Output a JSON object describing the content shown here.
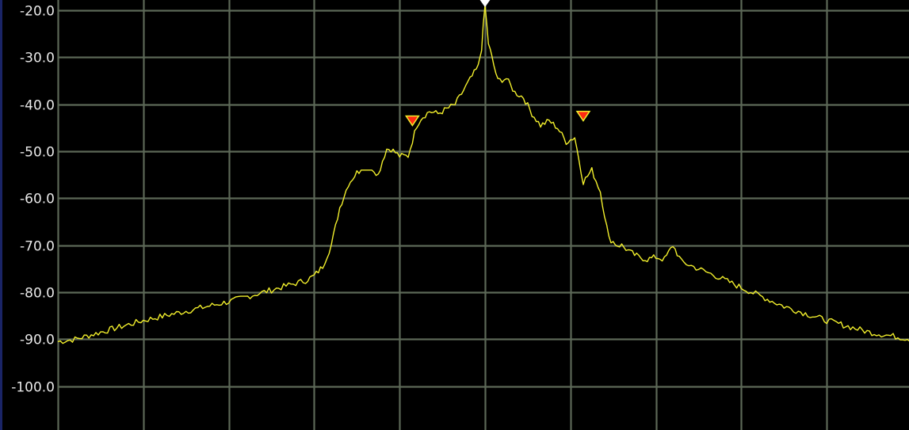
{
  "chart_data": {
    "type": "line",
    "title": "",
    "xlabel": "",
    "ylabel": "",
    "ylim": [
      -109.3,
      -17.8
    ],
    "y_ticks": [
      "-20.0",
      "-30.0",
      "-40.0",
      "-50.0",
      "-60.0",
      "-70.0",
      "-80.0",
      "-90.0",
      "-100.0"
    ],
    "y_tick_values": [
      -20,
      -30,
      -40,
      -50,
      -60,
      -70,
      -80,
      -90,
      -100
    ],
    "x_divisions": 10,
    "grid": true,
    "legend": "none",
    "series": [
      {
        "x": [
          0.0,
          0.2,
          0.5,
          0.8,
          1.0,
          1.5,
          2.0,
          2.5,
          2.9,
          3.0,
          3.1,
          3.2,
          3.3,
          3.4,
          3.5,
          3.55,
          3.6,
          3.7,
          3.75,
          3.8,
          3.85,
          3.9,
          4.0,
          4.1,
          4.2,
          4.25,
          4.35,
          4.45,
          4.55,
          4.65,
          4.75,
          4.85,
          4.92,
          4.96,
          5.0,
          5.04,
          5.08,
          5.15,
          5.25,
          5.35,
          5.45,
          5.55,
          5.65,
          5.75,
          5.85,
          5.95,
          6.05,
          6.15,
          6.25,
          6.35,
          6.45,
          6.55,
          6.6,
          6.7,
          6.8,
          6.9,
          7.0,
          7.1,
          7.2,
          7.3,
          7.5,
          7.7,
          8.0,
          8.5,
          9.0,
          9.5,
          10.0
        ],
        "y": [
          -90.5,
          -90.0,
          -88.5,
          -87.0,
          -86.0,
          -84.0,
          -82.0,
          -79.5,
          -77.5,
          -76.5,
          -74.5,
          -70.0,
          -62.0,
          -57.0,
          -54.5,
          -54.0,
          -54.0,
          -54.0,
          -55.0,
          -52.0,
          -49.5,
          -49.5,
          -51.0,
          -51.0,
          -44.5,
          -43.0,
          -41.5,
          -42.0,
          -41.0,
          -40.0,
          -37.0,
          -34.0,
          -32.0,
          -28.0,
          -19.0,
          -27.0,
          -30.0,
          -35.0,
          -34.5,
          -37.5,
          -38.5,
          -42.0,
          -44.5,
          -43.5,
          -45.0,
          -48.0,
          -47.0,
          -56.5,
          -54.0,
          -58.5,
          -68.5,
          -70.0,
          -70.0,
          -71.5,
          -72.5,
          -73.0,
          -72.5,
          -73.0,
          -70.0,
          -73.5,
          -75.0,
          -76.5,
          -79.0,
          -83.0,
          -86.0,
          -88.5,
          -90.0
        ],
        "color": "#f2ef2c"
      }
    ],
    "markers": [
      {
        "x": 5.0,
        "y": -18.5,
        "color": "#ffffff",
        "name": "reference"
      },
      {
        "x": 4.15,
        "y": -43.5,
        "color": "#ff2a12",
        "name": "marker-1"
      },
      {
        "x": 6.15,
        "y": -42.5,
        "color": "#ff2a12",
        "name": "marker-2"
      }
    ],
    "colors": {
      "background": "#000000",
      "grid": "#5c6857",
      "trace": "#f2ef2c",
      "marker_fill": "#ff2a12",
      "marker_outline": "#f2ef2c",
      "axis_text": "#e8e8e8"
    }
  }
}
